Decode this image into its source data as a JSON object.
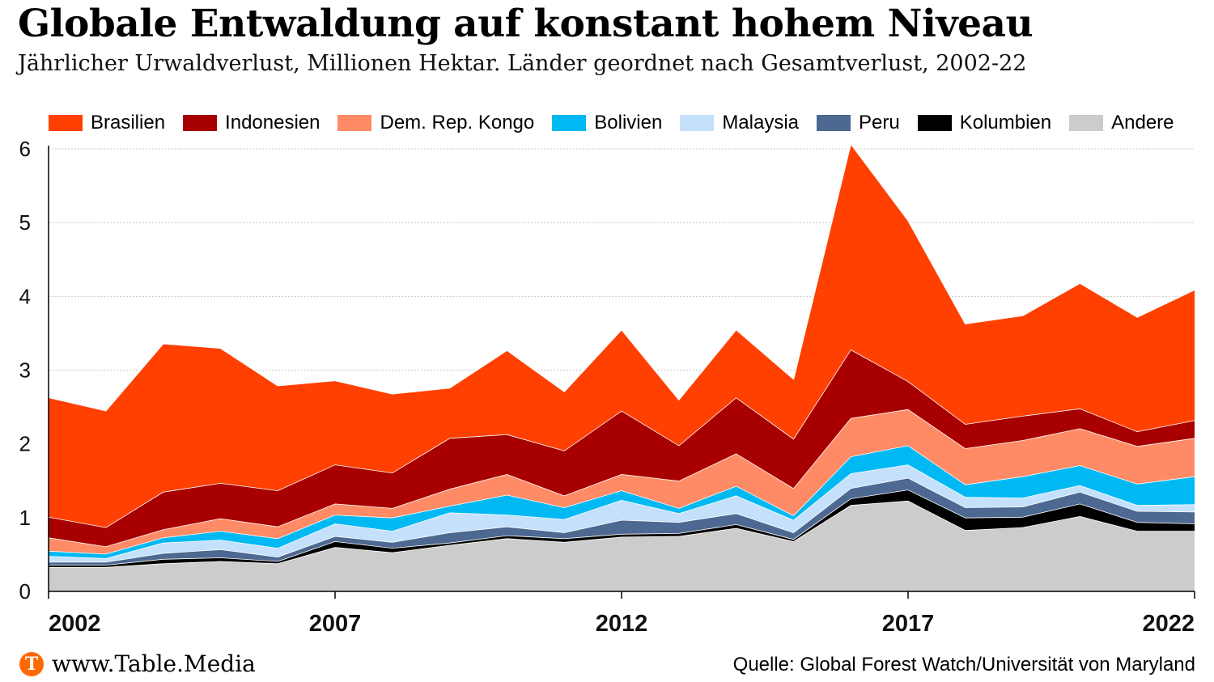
{
  "title": "Globale Entwaldung auf konstant hohem Niveau",
  "subtitle": "Jährlicher Urwaldverlust, Millionen Hektar. Länder geordnet nach Gesamtverlust, 2002-22",
  "footer": {
    "logo_letter": "T",
    "site": "www.Table.Media",
    "source": "Quelle: Global Forest Watch/Universität von Maryland"
  },
  "chart_data": {
    "type": "area",
    "stacked": true,
    "x": [
      2002,
      2003,
      2004,
      2005,
      2006,
      2007,
      2008,
      2009,
      2010,
      2011,
      2012,
      2013,
      2014,
      2015,
      2016,
      2017,
      2018,
      2019,
      2020,
      2021,
      2022
    ],
    "x_tick_labels": [
      "2002",
      "2007",
      "2012",
      "2017",
      "2022"
    ],
    "y_tick_labels": [
      "0",
      "1",
      "2",
      "3",
      "4",
      "5",
      "6"
    ],
    "ylim": [
      0,
      6
    ],
    "grid": "horizontal",
    "legend_position": "top",
    "series": [
      {
        "name": "Andere",
        "color": "#cccccc",
        "values": [
          0.33,
          0.33,
          0.38,
          0.41,
          0.38,
          0.6,
          0.53,
          0.63,
          0.72,
          0.67,
          0.74,
          0.75,
          0.86,
          0.68,
          1.17,
          1.23,
          0.83,
          0.87,
          1.02,
          0.82,
          0.82
        ]
      },
      {
        "name": "Kolumbien",
        "color": "#000000",
        "values": [
          0.03,
          0.03,
          0.06,
          0.05,
          0.03,
          0.08,
          0.06,
          0.03,
          0.04,
          0.05,
          0.04,
          0.04,
          0.05,
          0.03,
          0.09,
          0.15,
          0.17,
          0.14,
          0.17,
          0.12,
          0.1
        ]
      },
      {
        "name": "Peru",
        "color": "#4d6891",
        "values": [
          0.04,
          0.04,
          0.08,
          0.11,
          0.06,
          0.07,
          0.08,
          0.14,
          0.12,
          0.08,
          0.19,
          0.15,
          0.15,
          0.09,
          0.14,
          0.16,
          0.14,
          0.14,
          0.16,
          0.15,
          0.16
        ]
      },
      {
        "name": "Malaysia",
        "color": "#c4e0fb",
        "values": [
          0.08,
          0.05,
          0.14,
          0.13,
          0.12,
          0.17,
          0.15,
          0.27,
          0.16,
          0.18,
          0.27,
          0.12,
          0.24,
          0.17,
          0.2,
          0.18,
          0.14,
          0.12,
          0.09,
          0.08,
          0.1
        ]
      },
      {
        "name": "Bolivien",
        "color": "#00b9f2",
        "values": [
          0.07,
          0.06,
          0.07,
          0.12,
          0.13,
          0.12,
          0.18,
          0.09,
          0.27,
          0.16,
          0.13,
          0.07,
          0.13,
          0.06,
          0.23,
          0.26,
          0.17,
          0.29,
          0.27,
          0.29,
          0.38
        ]
      },
      {
        "name": "Dem. Rep. Kongo",
        "color": "#ff8b66",
        "values": [
          0.18,
          0.1,
          0.11,
          0.17,
          0.16,
          0.15,
          0.13,
          0.23,
          0.28,
          0.16,
          0.22,
          0.37,
          0.44,
          0.37,
          0.52,
          0.49,
          0.49,
          0.49,
          0.5,
          0.51,
          0.52
        ]
      },
      {
        "name": "Indonesien",
        "color": "#a80000",
        "values": [
          0.28,
          0.26,
          0.51,
          0.48,
          0.49,
          0.53,
          0.48,
          0.69,
          0.54,
          0.61,
          0.86,
          0.48,
          0.76,
          0.67,
          0.93,
          0.38,
          0.33,
          0.33,
          0.27,
          0.2,
          0.24
        ]
      },
      {
        "name": "Brasilien",
        "color": "#ff4000",
        "values": [
          1.62,
          1.58,
          2.01,
          1.83,
          1.42,
          1.14,
          1.07,
          0.68,
          1.14,
          0.8,
          1.1,
          0.62,
          0.92,
          0.81,
          2.79,
          2.18,
          1.36,
          1.36,
          1.7,
          1.55,
          1.77
        ]
      }
    ]
  }
}
